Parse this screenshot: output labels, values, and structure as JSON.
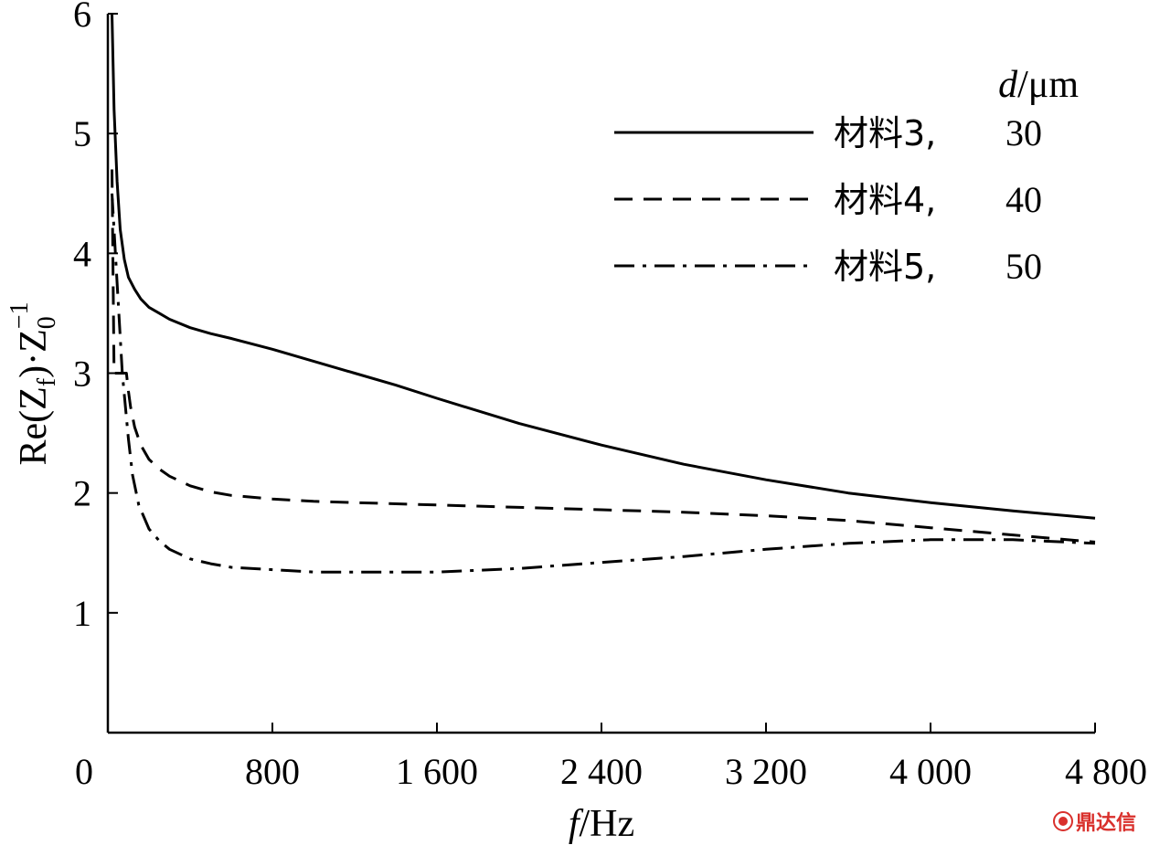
{
  "chart_data": {
    "type": "line",
    "xlabel_italic": "f",
    "xlabel_unit": "/Hz",
    "ylabel_parts": {
      "pre": "Re(Z",
      "sub": "f",
      "mid": ")·Z",
      "sub2": "0",
      "sup": "−1"
    },
    "xlim": [
      0,
      4800
    ],
    "ylim": [
      0,
      6
    ],
    "x_ticks": [
      0,
      800,
      1600,
      2400,
      3200,
      4000,
      4800
    ],
    "x_tick_labels": [
      "0",
      "800",
      "1 600",
      "2 400",
      "3 200",
      "4 000",
      "4 800"
    ],
    "y_ticks": [
      1,
      2,
      3,
      4,
      5,
      6
    ],
    "y_tick_labels": [
      "1",
      "2",
      "3",
      "4",
      "5",
      "6"
    ],
    "legend_title_italic": "d",
    "legend_title_unit": "/μm",
    "legend_position": "top-right",
    "series": [
      {
        "name": "材料3,",
        "d": "30",
        "style": "solid",
        "x": [
          20,
          30,
          45,
          60,
          80,
          100,
          130,
          160,
          200,
          250,
          300,
          400,
          500,
          600,
          800,
          1000,
          1200,
          1400,
          1600,
          2000,
          2400,
          2800,
          3200,
          3600,
          4000,
          4400,
          4800
        ],
        "y": [
          6.0,
          5.2,
          4.6,
          4.2,
          3.95,
          3.8,
          3.7,
          3.62,
          3.55,
          3.5,
          3.45,
          3.38,
          3.33,
          3.29,
          3.2,
          3.1,
          3.0,
          2.9,
          2.79,
          2.58,
          2.4,
          2.24,
          2.11,
          2.0,
          1.92,
          1.85,
          1.79
        ]
      },
      {
        "name": "材料4,",
        "d": "40",
        "style": "dashed",
        "x": [
          20,
          30,
          50,
          70,
          90,
          100,
          110,
          130,
          160,
          200,
          250,
          300,
          400,
          500,
          600,
          800,
          1000,
          1200,
          1600,
          2000,
          2400,
          2800,
          3200,
          3600,
          4000,
          4400,
          4800
        ],
        "y": [
          4.7,
          3.0,
          3.0,
          3.0,
          3.0,
          2.85,
          2.72,
          2.55,
          2.4,
          2.28,
          2.2,
          2.14,
          2.06,
          2.01,
          1.98,
          1.95,
          1.93,
          1.92,
          1.9,
          1.88,
          1.86,
          1.84,
          1.81,
          1.77,
          1.71,
          1.65,
          1.59
        ]
      },
      {
        "name": "材料5,",
        "d": "50",
        "style": "dash-dot",
        "x": [
          20,
          40,
          70,
          100,
          120,
          150,
          200,
          250,
          300,
          400,
          500,
          600,
          800,
          1000,
          1200,
          1400,
          1600,
          2000,
          2400,
          2800,
          3200,
          3600,
          4000,
          4400,
          4800
        ],
        "y": [
          4.5,
          3.9,
          3.0,
          2.45,
          2.15,
          1.9,
          1.7,
          1.6,
          1.53,
          1.45,
          1.41,
          1.38,
          1.36,
          1.34,
          1.34,
          1.34,
          1.34,
          1.37,
          1.42,
          1.47,
          1.53,
          1.58,
          1.61,
          1.61,
          1.58
        ]
      }
    ]
  },
  "watermark": "鼎达信"
}
